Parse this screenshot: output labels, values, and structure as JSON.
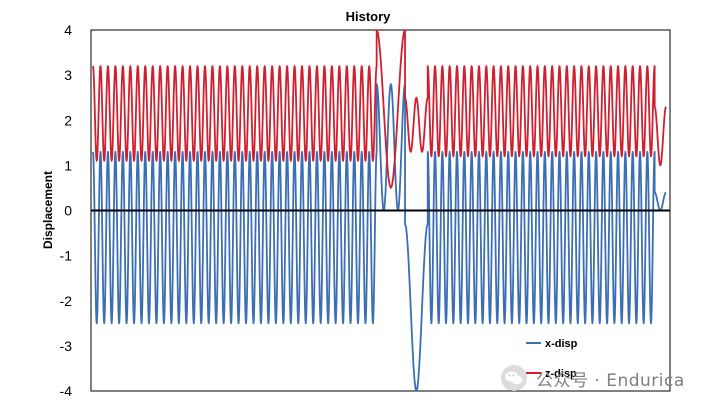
{
  "chart_data": {
    "type": "line",
    "title": "History",
    "xlabel": "",
    "ylabel": "Displacement",
    "ylim": [
      -4,
      4
    ],
    "yticks": [
      "-4",
      "-3",
      "-2",
      "-1",
      "0",
      "1",
      "2",
      "3",
      "4"
    ],
    "grid": false,
    "legend_position": "bottom-right",
    "series": [
      {
        "name": "x-disp",
        "color": "#3c6eb4",
        "segments": [
          {
            "t0": 0,
            "t1": 1.0,
            "cycles": 38,
            "low": -2.5,
            "high": 1.3
          },
          {
            "t0": 1.0,
            "t1": 1.1,
            "cycles": 2,
            "low": 0.0,
            "high": 2.8
          },
          {
            "t0": 1.1,
            "t1": 1.18,
            "cycles": 1,
            "low": -4.0,
            "high": -0.3
          },
          {
            "t0": 1.18,
            "t1": 1.98,
            "cycles": 31,
            "low": -2.5,
            "high": 1.3
          },
          {
            "t0": 1.98,
            "t1": 2.02,
            "cycles": 1,
            "low": 0.0,
            "high": 0.4
          }
        ]
      },
      {
        "name": "z-disp",
        "color": "#d02030",
        "segments": [
          {
            "t0": 0,
            "t1": 1.0,
            "cycles": 38,
            "low": 1.1,
            "high": 3.2
          },
          {
            "t0": 1.0,
            "t1": 1.1,
            "cycles": 1,
            "low": 0.5,
            "high": 4.0
          },
          {
            "t0": 1.1,
            "t1": 1.18,
            "cycles": 2,
            "low": 1.3,
            "high": 2.5
          },
          {
            "t0": 1.18,
            "t1": 1.98,
            "cycles": 31,
            "low": 1.2,
            "high": 3.2
          },
          {
            "t0": 1.98,
            "t1": 2.02,
            "cycles": 1,
            "low": 1.0,
            "high": 2.3
          }
        ]
      }
    ]
  },
  "watermark": {
    "text": "公众号 · Endurica",
    "icon": "wechat-icon"
  }
}
